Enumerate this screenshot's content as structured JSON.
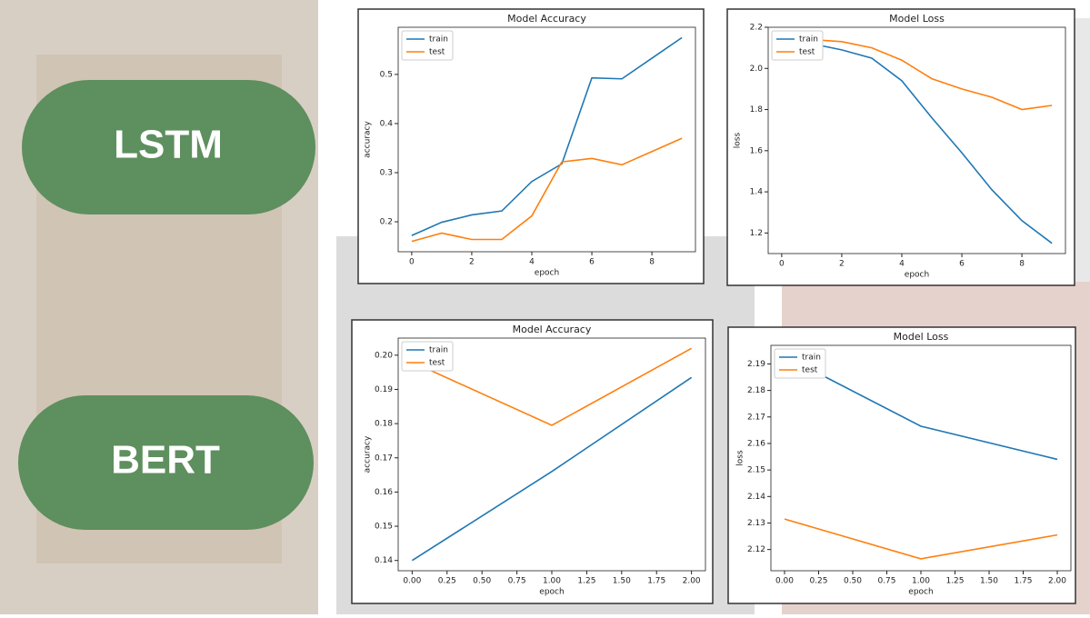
{
  "labels": [
    "LSTM",
    "BERT"
  ],
  "chart_data": [
    {
      "type": "line",
      "title": "Model Accuracy",
      "x_label": "epoch",
      "y_label": "accuracy",
      "legend": "upper left",
      "x": [
        0,
        1,
        2,
        3,
        4,
        5,
        6,
        7,
        8,
        9
      ],
      "series": [
        {
          "name": "train",
          "color": "#1f77b4",
          "values": [
            0.172,
            0.199,
            0.214,
            0.222,
            0.282,
            0.318,
            0.493,
            0.491,
            0.533,
            0.575
          ]
        },
        {
          "name": "test",
          "color": "#ff7f0e",
          "values": [
            0.16,
            0.177,
            0.164,
            0.164,
            0.212,
            0.322,
            0.329,
            0.316,
            0.343,
            0.37
          ]
        }
      ],
      "xlim": [
        -0.45,
        9.45
      ],
      "ylim": [
        0.139,
        0.596
      ],
      "xticks": [
        0,
        2,
        4,
        6,
        8
      ],
      "yticks": [
        0.2,
        0.3,
        0.4,
        0.5
      ]
    },
    {
      "type": "line",
      "title": "Model Loss",
      "x_label": "epoch",
      "y_label": "loss",
      "legend": "upper left",
      "x": [
        0,
        1,
        2,
        3,
        4,
        5,
        6,
        7,
        8,
        9
      ],
      "series": [
        {
          "name": "train",
          "color": "#1f77b4",
          "values": [
            2.15,
            2.12,
            2.09,
            2.05,
            1.94,
            1.76,
            1.59,
            1.41,
            1.26,
            1.15
          ]
        },
        {
          "name": "test",
          "color": "#ff7f0e",
          "values": [
            2.15,
            2.14,
            2.13,
            2.1,
            2.04,
            1.95,
            1.9,
            1.86,
            1.8,
            1.82
          ]
        }
      ],
      "xlim": [
        -0.45,
        9.45
      ],
      "ylim": [
        1.1,
        2.2
      ],
      "xticks": [
        0,
        2,
        4,
        6,
        8
      ],
      "yticks": [
        1.2,
        1.4,
        1.6,
        1.8,
        {
          "value": 2,
          "label": "2.0"
        },
        2.2
      ]
    },
    {
      "type": "line",
      "title": "Model Accuracy",
      "x_label": "epoch",
      "y_label": "accuracy",
      "legend": "upper left",
      "x": [
        0,
        1,
        2
      ],
      "series": [
        {
          "name": "train",
          "color": "#1f77b4",
          "values": [
            0.14,
            0.166,
            0.1935
          ]
        },
        {
          "name": "test",
          "color": "#ff7f0e",
          "values": [
            0.198,
            0.1795,
            0.202
          ]
        }
      ],
      "xlim": [
        -0.1,
        2.1
      ],
      "ylim": [
        0.137,
        0.205
      ],
      "xticks": [
        {
          "value": 0,
          "label": "0.00"
        },
        {
          "value": 0.25,
          "label": "0.25"
        },
        {
          "value": 0.5,
          "label": "0.50"
        },
        {
          "value": 0.75,
          "label": "0.75"
        },
        {
          "value": 1,
          "label": "1.00"
        },
        {
          "value": 1.25,
          "label": "1.25"
        },
        {
          "value": 1.5,
          "label": "1.50"
        },
        {
          "value": 1.75,
          "label": "1.75"
        },
        {
          "value": 2,
          "label": "2.00"
        }
      ],
      "yticks": [
        0.14,
        0.15,
        0.16,
        0.17,
        0.18,
        0.19,
        {
          "value": 0.2,
          "label": "0.20"
        }
      ]
    },
    {
      "type": "line",
      "title": "Model Loss",
      "x_label": "epoch",
      "y_label": "loss",
      "legend": "upper left",
      "x": [
        0,
        1,
        2
      ],
      "series": [
        {
          "name": "train",
          "color": "#1f77b4",
          "values": [
            2.193,
            2.1665,
            2.154
          ]
        },
        {
          "name": "test",
          "color": "#ff7f0e",
          "values": [
            2.1315,
            2.1165,
            2.1255
          ]
        }
      ],
      "xlim": [
        -0.1,
        2.1
      ],
      "ylim": [
        2.112,
        2.197
      ],
      "xticks": [
        {
          "value": 0,
          "label": "0.00"
        },
        {
          "value": 0.25,
          "label": "0.25"
        },
        {
          "value": 0.5,
          "label": "0.50"
        },
        {
          "value": 0.75,
          "label": "0.75"
        },
        {
          "value": 1,
          "label": "1.00"
        },
        {
          "value": 1.25,
          "label": "1.25"
        },
        {
          "value": 1.5,
          "label": "1.50"
        },
        {
          "value": 1.75,
          "label": "1.75"
        },
        {
          "value": 2,
          "label": "2.00"
        }
      ],
      "yticks": [
        2.12,
        2.13,
        2.14,
        2.15,
        2.16,
        2.17,
        2.18,
        2.19
      ]
    }
  ]
}
